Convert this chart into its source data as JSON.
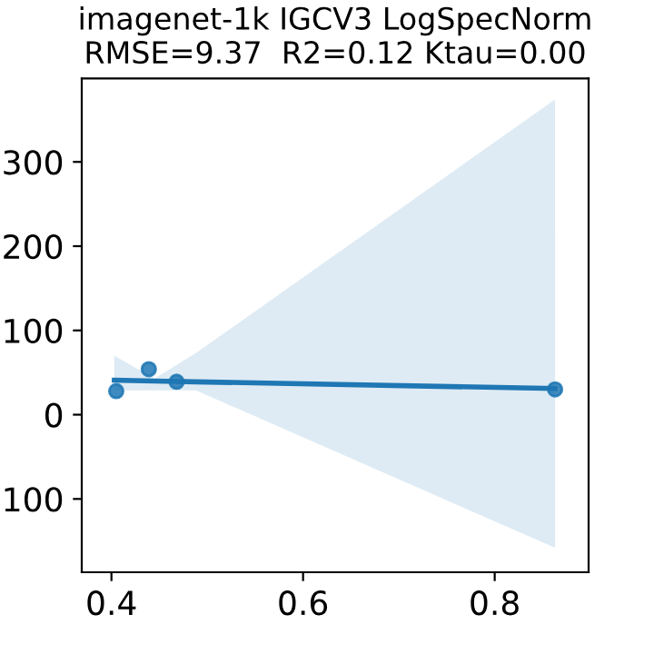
{
  "chart_data": {
    "type": "scatter",
    "title": "imagenet-1k IGCV3 LogSpecNorm\nRMSE=9.37  R2=0.12 Ktau=0.00",
    "series": [
      {
        "color": "#1f77b4",
        "marker": "circle",
        "x": [
          0.405,
          0.439,
          0.468,
          0.863
        ],
        "values": [
          28,
          54,
          39,
          30
        ]
      },
      {
        "type": "line",
        "color": "#1f77b4",
        "x": [
          0.403,
          0.445,
          0.488,
          0.863
        ],
        "values": [
          41,
          40,
          39,
          31
        ],
        "lower": [
          29,
          29,
          29,
          -158
        ],
        "upper": [
          70,
          43,
          73,
          374
        ]
      }
    ],
    "xlim": [
      0.369,
      0.898
    ],
    "xticks": [
      0.4,
      0.6,
      0.8
    ],
    "ylim": [
      -187,
      399
    ],
    "yticks": [
      {
        "value": -100,
        "label": "100"
      },
      0,
      100,
      200,
      300
    ],
    "grid": false
  }
}
